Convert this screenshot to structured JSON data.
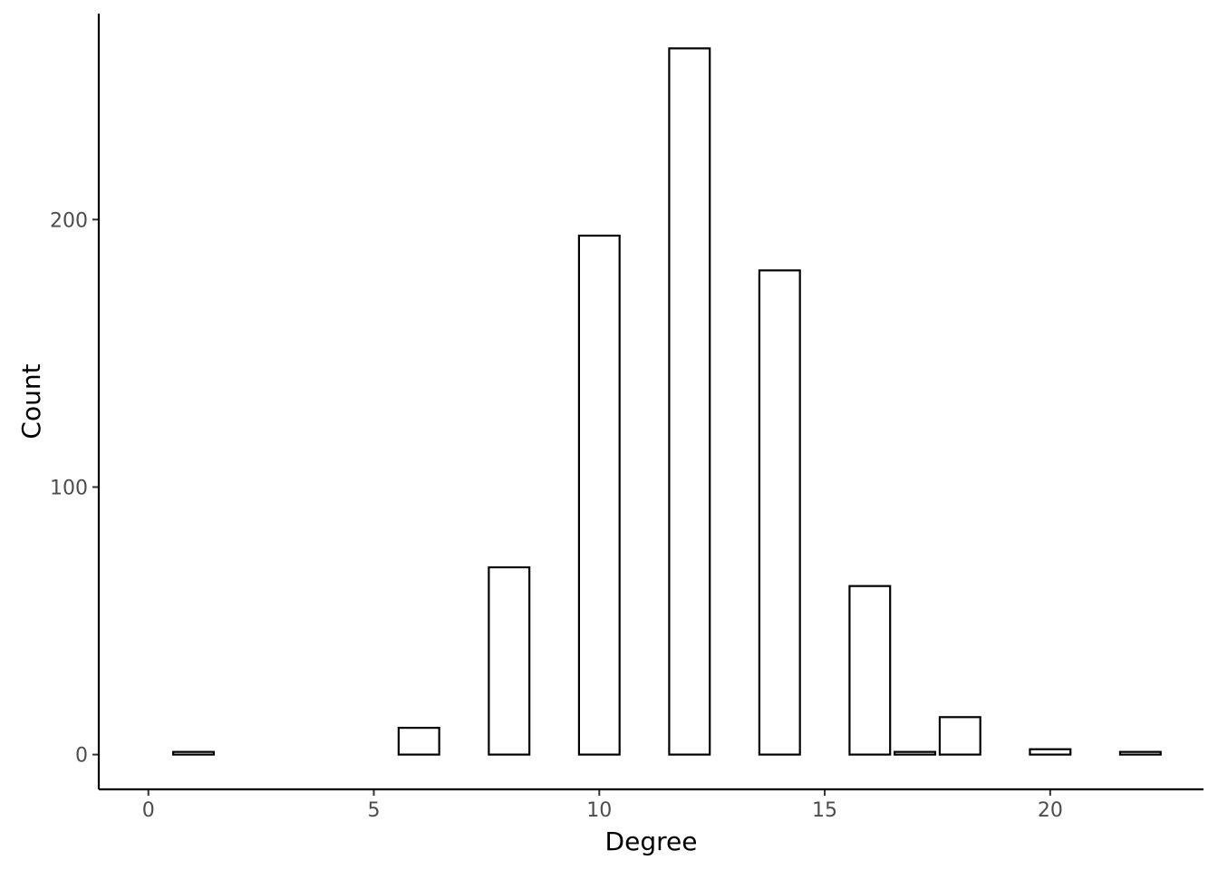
{
  "chart_data": {
    "type": "bar",
    "title": "",
    "xlabel": "Degree",
    "ylabel": "Count",
    "x": [
      1,
      6,
      8,
      10,
      12,
      14,
      16,
      17,
      18,
      20,
      22
    ],
    "values": [
      1,
      10,
      70,
      194,
      264,
      181,
      63,
      1,
      14,
      2,
      1
    ],
    "xlim": [
      -1.1,
      23.4
    ],
    "ylim": [
      -13,
      277
    ],
    "xticks": [
      0,
      5,
      10,
      15,
      20
    ],
    "yticks": [
      0,
      100,
      200
    ],
    "bar_width": 0.9,
    "grid": false,
    "legend": "none",
    "bar_fill": "#ffffff",
    "bar_stroke": "#000000"
  }
}
